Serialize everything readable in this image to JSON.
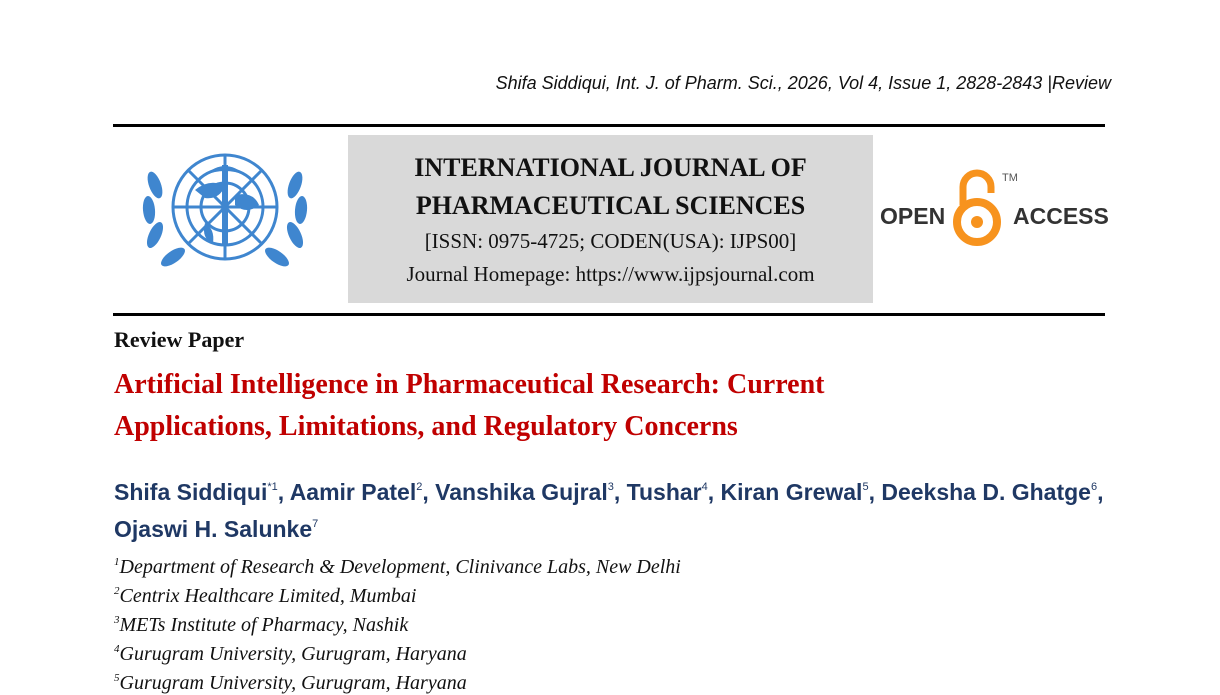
{
  "running_header": "Shifa Siddiqui, Int. J. of Pharm. Sci., 2026, Vol 4, Issue 1, 2828-2843 |Review",
  "masthead": {
    "name_lines": [
      "INTERNATIONAL JOURNAL OF",
      "PHARMACEUTICAL SCIENCES"
    ],
    "issn": "[ISSN: 0975-4725; CODEN(USA): IJPS00]",
    "homepage": "Journal Homepage: https://www.ijpsjournal.com"
  },
  "open_access": {
    "left": "OPEN",
    "right": "ACCESS",
    "tm": "TM"
  },
  "article_type": "Review Paper",
  "title_lines": [
    "Artificial Intelligence in Pharmaceutical Research: Current",
    "Applications, Limitations, and Regulatory Concerns"
  ],
  "authors": [
    {
      "name": "Shifa Siddiqui",
      "mark": "*1",
      "after": ","
    },
    {
      "name": "Aamir Patel",
      "mark": "2",
      "after": ","
    },
    {
      "name": "Vanshika Gujral",
      "mark": "3",
      "after": ","
    },
    {
      "name": "Tushar",
      "mark": "4",
      "after": ","
    },
    {
      "name": "Kiran Grewal",
      "mark": "5",
      "after": ","
    },
    {
      "name": "Deeksha D. Ghatge",
      "mark": "6",
      "after": ","
    },
    {
      "name": "Ojaswi H. Salunke",
      "mark": "7"
    }
  ],
  "affiliations": [
    {
      "mark": "1",
      "text": "Department of Research & Development, Clinivance Labs, New Delhi"
    },
    {
      "mark": "2",
      "text": "Centrix Healthcare Limited, Mumbai"
    },
    {
      "mark": "3",
      "text": "METs Institute of Pharmacy, Nashik"
    },
    {
      "mark": "4",
      "text": "Gurugram University, Gurugram, Haryana"
    },
    {
      "mark": "5",
      "text": "Gurugram University, Gurugram, Haryana"
    }
  ]
}
